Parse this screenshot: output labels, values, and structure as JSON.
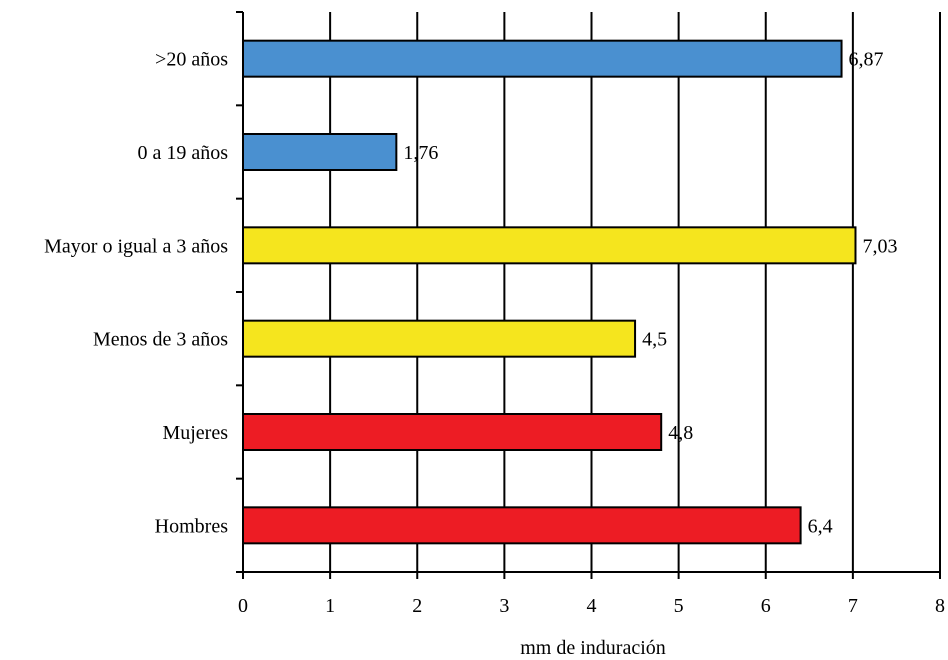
{
  "chart_data": {
    "type": "bar",
    "orientation": "horizontal",
    "categories": [
      ">20 años",
      "0 a 19 años",
      "Mayor o igual a 3 años",
      "Menos de 3 años",
      "Mujeres",
      "Hombres"
    ],
    "values": [
      6.87,
      1.76,
      7.03,
      4.5,
      4.8,
      6.4
    ],
    "data_labels": [
      "6,87",
      "1,76",
      "7,03",
      "4,5",
      "4,8",
      "6,4"
    ],
    "bar_colors": [
      "#4A90D0",
      "#4A90D0",
      "#F5E51E",
      "#F5E51E",
      "#ED1C24",
      "#ED1C24"
    ],
    "xlabel": "mm de induración",
    "xlim": [
      0,
      8
    ],
    "xticks": [
      "0",
      "1",
      "2",
      "3",
      "4",
      "5",
      "6",
      "7",
      "8"
    ],
    "grid": "vertical",
    "legend": "none"
  }
}
